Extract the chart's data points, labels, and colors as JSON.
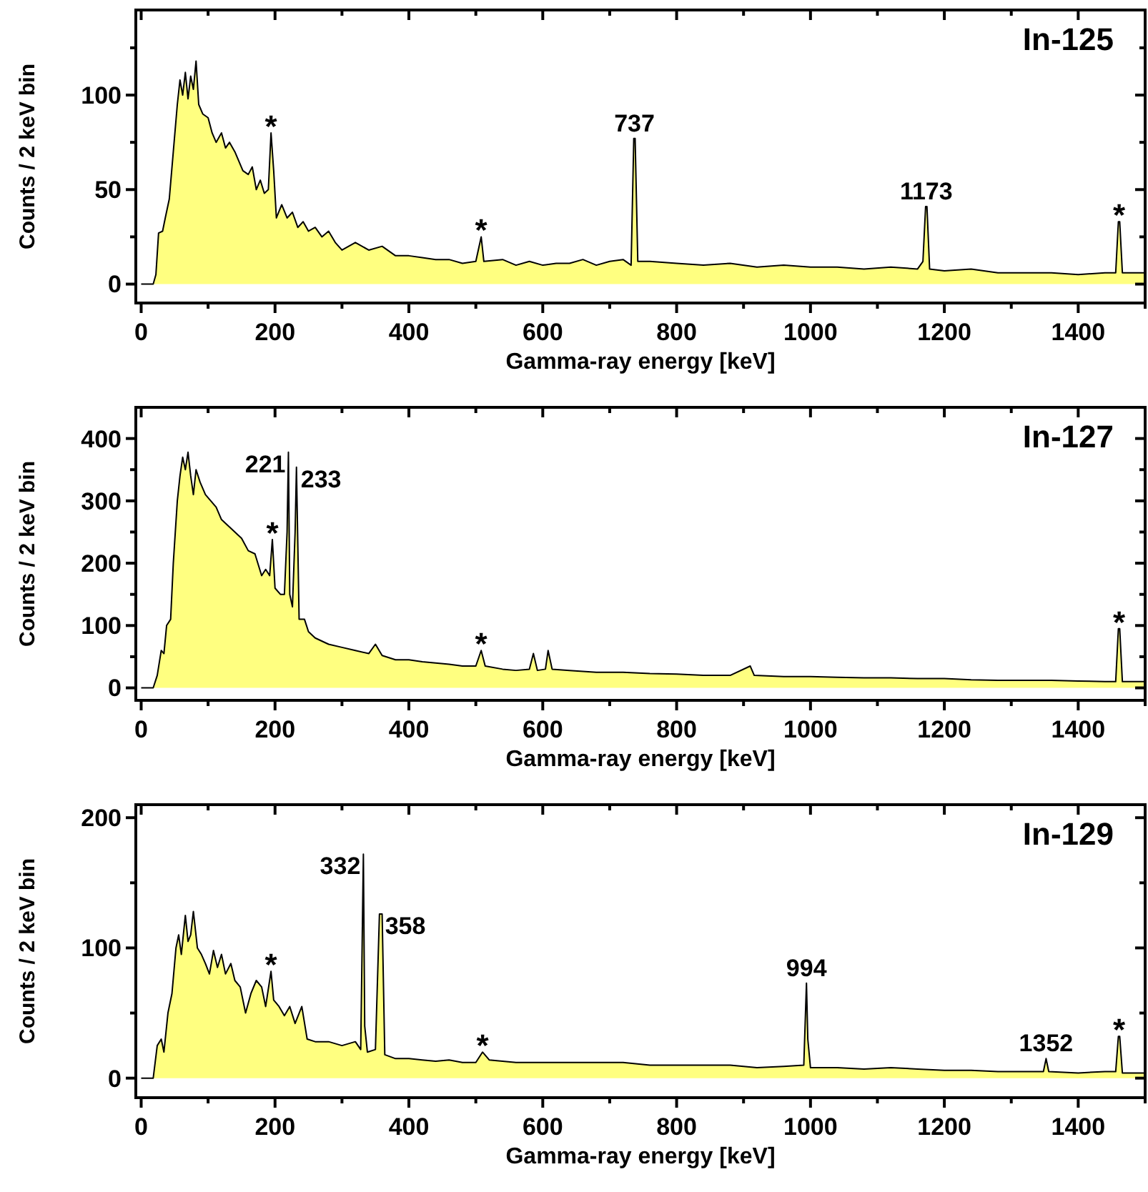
{
  "chart_data": [
    {
      "type": "area",
      "title": "In-125",
      "xlabel": "Gamma-ray energy [keV]",
      "ylabel": "Counts / 2 keV bin",
      "x": [
        0,
        18,
        22,
        26,
        32,
        36,
        42,
        48,
        54,
        58,
        62,
        66,
        70,
        74,
        78,
        82,
        86,
        92,
        100,
        106,
        112,
        120,
        126,
        132,
        140,
        146,
        152,
        160,
        166,
        172,
        178,
        184,
        190,
        194,
        198,
        202,
        210,
        218,
        226,
        234,
        242,
        250,
        260,
        270,
        280,
        290,
        300,
        320,
        340,
        360,
        380,
        400,
        420,
        440,
        460,
        480,
        500,
        508,
        512,
        540,
        560,
        580,
        600,
        620,
        640,
        660,
        680,
        700,
        720,
        732,
        736,
        738,
        742,
        760,
        800,
        840,
        880,
        920,
        960,
        1000,
        1040,
        1080,
        1120,
        1160,
        1168,
        1172,
        1174,
        1178,
        1200,
        1240,
        1280,
        1320,
        1360,
        1400,
        1440,
        1456,
        1460,
        1462,
        1466,
        1500
      ],
      "series": [
        {
          "color": "#ffff80",
          "values": [
            0,
            0,
            5,
            27,
            28,
            35,
            45,
            70,
            95,
            108,
            100,
            112,
            98,
            110,
            103,
            118,
            95,
            90,
            88,
            80,
            75,
            80,
            72,
            75,
            70,
            65,
            60,
            58,
            62,
            50,
            55,
            48,
            50,
            80,
            60,
            35,
            42,
            35,
            38,
            30,
            33,
            28,
            30,
            25,
            28,
            22,
            18,
            22,
            18,
            20,
            15,
            15,
            14,
            13,
            13,
            11,
            12,
            25,
            12,
            13,
            10,
            12,
            10,
            11,
            11,
            13,
            10,
            12,
            13,
            10,
            77,
            77,
            12,
            12,
            11,
            10,
            11,
            9,
            10,
            9,
            9,
            8,
            9,
            8,
            12,
            41,
            41,
            8,
            7,
            8,
            6,
            6,
            6,
            5,
            6,
            6,
            33,
            33,
            6,
            6
          ]
        }
      ],
      "xlim": [
        -8,
        1500
      ],
      "ylim": [
        -10,
        145
      ],
      "xticks": [
        0,
        {
          "value": 100,
          "label": null
        },
        200,
        {
          "value": 300,
          "label": null
        },
        400,
        {
          "value": 500,
          "label": null
        },
        600,
        {
          "value": 700,
          "label": null
        },
        800,
        {
          "value": 900,
          "label": null
        },
        1000,
        {
          "value": 1100,
          "label": null
        },
        1200,
        {
          "value": 1300,
          "label": null
        },
        1400,
        {
          "value": 1500,
          "label": null
        }
      ],
      "yticks": [
        0,
        {
          "value": 25,
          "label": null
        },
        50,
        {
          "value": 75,
          "label": null
        },
        100,
        {
          "value": 125,
          "label": null
        }
      ],
      "annotations": [
        {
          "text": "*",
          "x": 194,
          "y": 80
        },
        {
          "text": "*",
          "x": 508,
          "y": 25
        },
        {
          "text": "737",
          "x": 737,
          "y": 77
        },
        {
          "text": "1173",
          "x": 1173,
          "y": 41
        },
        {
          "text": "*",
          "x": 1461,
          "y": 33
        }
      ]
    },
    {
      "type": "area",
      "title": "In-127",
      "xlabel": "Gamma-ray energy [keV]",
      "ylabel": "Counts / 2 keV bin",
      "x": [
        0,
        18,
        24,
        30,
        34,
        38,
        44,
        48,
        54,
        58,
        62,
        66,
        70,
        74,
        78,
        82,
        88,
        96,
        104,
        112,
        120,
        130,
        140,
        150,
        160,
        170,
        180,
        186,
        192,
        196,
        200,
        208,
        214,
        218,
        220,
        222,
        226,
        230,
        232,
        236,
        244,
        250,
        260,
        280,
        300,
        320,
        340,
        350,
        360,
        380,
        400,
        420,
        440,
        460,
        480,
        500,
        508,
        514,
        540,
        560,
        580,
        586,
        592,
        604,
        608,
        614,
        640,
        680,
        720,
        760,
        800,
        840,
        880,
        910,
        916,
        960,
        1000,
        1040,
        1080,
        1120,
        1160,
        1200,
        1240,
        1280,
        1320,
        1360,
        1400,
        1440,
        1456,
        1460,
        1462,
        1466,
        1500
      ],
      "series": [
        {
          "color": "#ffff80",
          "values": [
            0,
            0,
            20,
            60,
            55,
            100,
            110,
            200,
            300,
            340,
            370,
            350,
            378,
            340,
            310,
            350,
            330,
            310,
            300,
            290,
            270,
            260,
            250,
            240,
            220,
            215,
            180,
            190,
            180,
            238,
            160,
            150,
            150,
            250,
            378,
            150,
            130,
            250,
            354,
            110,
            110,
            90,
            80,
            70,
            65,
            60,
            55,
            70,
            52,
            45,
            45,
            42,
            40,
            38,
            35,
            35,
            60,
            35,
            30,
            28,
            30,
            55,
            28,
            30,
            60,
            30,
            28,
            25,
            25,
            23,
            22,
            20,
            20,
            35,
            20,
            18,
            18,
            17,
            16,
            16,
            15,
            15,
            13,
            12,
            12,
            12,
            11,
            10,
            10,
            95,
            95,
            10,
            10
          ]
        }
      ],
      "xlim": [
        -8,
        1500
      ],
      "ylim": [
        -20,
        450
      ],
      "xticks": [
        0,
        {
          "value": 100,
          "label": null
        },
        200,
        {
          "value": 300,
          "label": null
        },
        400,
        {
          "value": 500,
          "label": null
        },
        600,
        {
          "value": 700,
          "label": null
        },
        800,
        {
          "value": 900,
          "label": null
        },
        1000,
        {
          "value": 1100,
          "label": null
        },
        1200,
        {
          "value": 1300,
          "label": null
        },
        1400,
        {
          "value": 1500,
          "label": null
        }
      ],
      "yticks": [
        0,
        {
          "value": 50,
          "label": null
        },
        100,
        {
          "value": 150,
          "label": null
        },
        200,
        {
          "value": 250,
          "label": null
        },
        300,
        {
          "value": 350,
          "label": null
        },
        400
      ],
      "annotations": [
        {
          "text": "*",
          "x": 196,
          "y": 238
        },
        {
          "text": "221",
          "x": 220,
          "y": 378
        },
        {
          "text": "233",
          "x": 232,
          "y": 354
        },
        {
          "text": "*",
          "x": 508,
          "y": 60
        },
        {
          "text": "*",
          "x": 1461,
          "y": 95
        }
      ]
    },
    {
      "type": "area",
      "title": "In-129",
      "xlabel": "Gamma-ray energy [keV]",
      "ylabel": "Counts / 2 keV bin",
      "x": [
        0,
        18,
        24,
        30,
        34,
        40,
        46,
        52,
        56,
        60,
        66,
        70,
        74,
        78,
        84,
        90,
        96,
        102,
        108,
        114,
        120,
        126,
        134,
        140,
        148,
        156,
        164,
        172,
        180,
        186,
        194,
        198,
        206,
        214,
        222,
        230,
        240,
        248,
        260,
        280,
        300,
        320,
        328,
        332,
        334,
        338,
        350,
        356,
        360,
        364,
        380,
        400,
        420,
        440,
        460,
        480,
        500,
        510,
        520,
        560,
        600,
        640,
        680,
        720,
        760,
        800,
        840,
        880,
        920,
        960,
        990,
        994,
        996,
        1000,
        1040,
        1080,
        1120,
        1160,
        1200,
        1240,
        1280,
        1320,
        1348,
        1352,
        1356,
        1400,
        1440,
        1456,
        1460,
        1462,
        1466,
        1500
      ],
      "series": [
        {
          "color": "#ffff80",
          "values": [
            0,
            0,
            25,
            30,
            20,
            50,
            65,
            100,
            110,
            95,
            125,
            105,
            110,
            128,
            100,
            95,
            88,
            80,
            98,
            85,
            95,
            80,
            88,
            75,
            70,
            50,
            65,
            75,
            70,
            55,
            82,
            60,
            55,
            48,
            55,
            42,
            55,
            30,
            28,
            28,
            25,
            28,
            22,
            172,
            40,
            20,
            22,
            126,
            126,
            18,
            15,
            15,
            14,
            13,
            14,
            12,
            12,
            20,
            14,
            12,
            12,
            12,
            12,
            12,
            10,
            10,
            10,
            10,
            8,
            9,
            10,
            73,
            30,
            8,
            8,
            7,
            8,
            7,
            6,
            6,
            5,
            5,
            5,
            15,
            5,
            4,
            5,
            5,
            32,
            32,
            4,
            4
          ]
        }
      ],
      "xlim": [
        -8,
        1500
      ],
      "ylim": [
        -15,
        210
      ],
      "xticks": [
        0,
        {
          "value": 100,
          "label": null
        },
        200,
        {
          "value": 300,
          "label": null
        },
        400,
        {
          "value": 500,
          "label": null
        },
        600,
        {
          "value": 700,
          "label": null
        },
        800,
        {
          "value": 900,
          "label": null
        },
        1000,
        {
          "value": 1100,
          "label": null
        },
        1200,
        {
          "value": 1300,
          "label": null
        },
        1400,
        {
          "value": 1500,
          "label": null
        }
      ],
      "yticks": [
        0,
        {
          "value": 50,
          "label": null
        },
        100,
        {
          "value": 150,
          "label": null
        },
        200
      ],
      "annotations": [
        {
          "text": "*",
          "x": 194,
          "y": 82
        },
        {
          "text": "332",
          "x": 332,
          "y": 172
        },
        {
          "text": "358",
          "x": 358,
          "y": 126
        },
        {
          "text": "*",
          "x": 510,
          "y": 20
        },
        {
          "text": "994",
          "x": 994,
          "y": 73
        },
        {
          "text": "1352",
          "x": 1352,
          "y": 15
        },
        {
          "text": "*",
          "x": 1461,
          "y": 32
        }
      ]
    }
  ]
}
